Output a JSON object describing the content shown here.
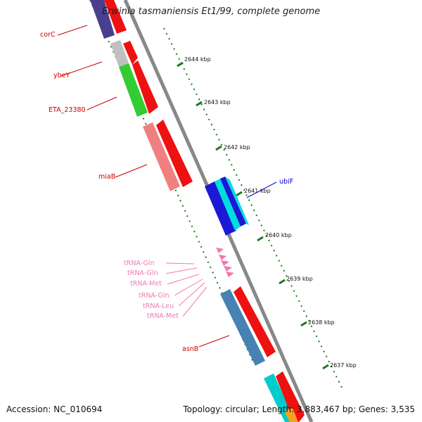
{
  "title": "Erwinia tasmaniensis Et1/99, complete genome",
  "footer": {
    "accession": "Accession: NC_010694",
    "summary": "Topology: circular; Length: 3,883,467 bp; Genes: 3,535"
  },
  "colors": {
    "backbone": "#888888",
    "tick": "#1a7a1a",
    "gene_label_red": "#cc0000",
    "gene_label_blue": "#0000cc",
    "trna_label": "#f07aaf"
  },
  "tick_labels": [
    "2644 kbp",
    "2643 kbp",
    "2642 kbp",
    "2641 kbp",
    "2640 kbp",
    "2639 kbp",
    "2638 kbp",
    "2637 kbp"
  ],
  "gene_labels": {
    "corC": "corC",
    "ybeY": "ybeY",
    "ETA_23380": "ETA_23380",
    "miaB": "miaB",
    "ubiF": "ubiF",
    "asnB": "asnB"
  },
  "trna_labels": [
    "tRNA-Gln",
    "tRNA-Gln",
    "tRNA-Met",
    "tRNA-Gln",
    "tRNA-Leu",
    "tRNA-Met"
  ]
}
